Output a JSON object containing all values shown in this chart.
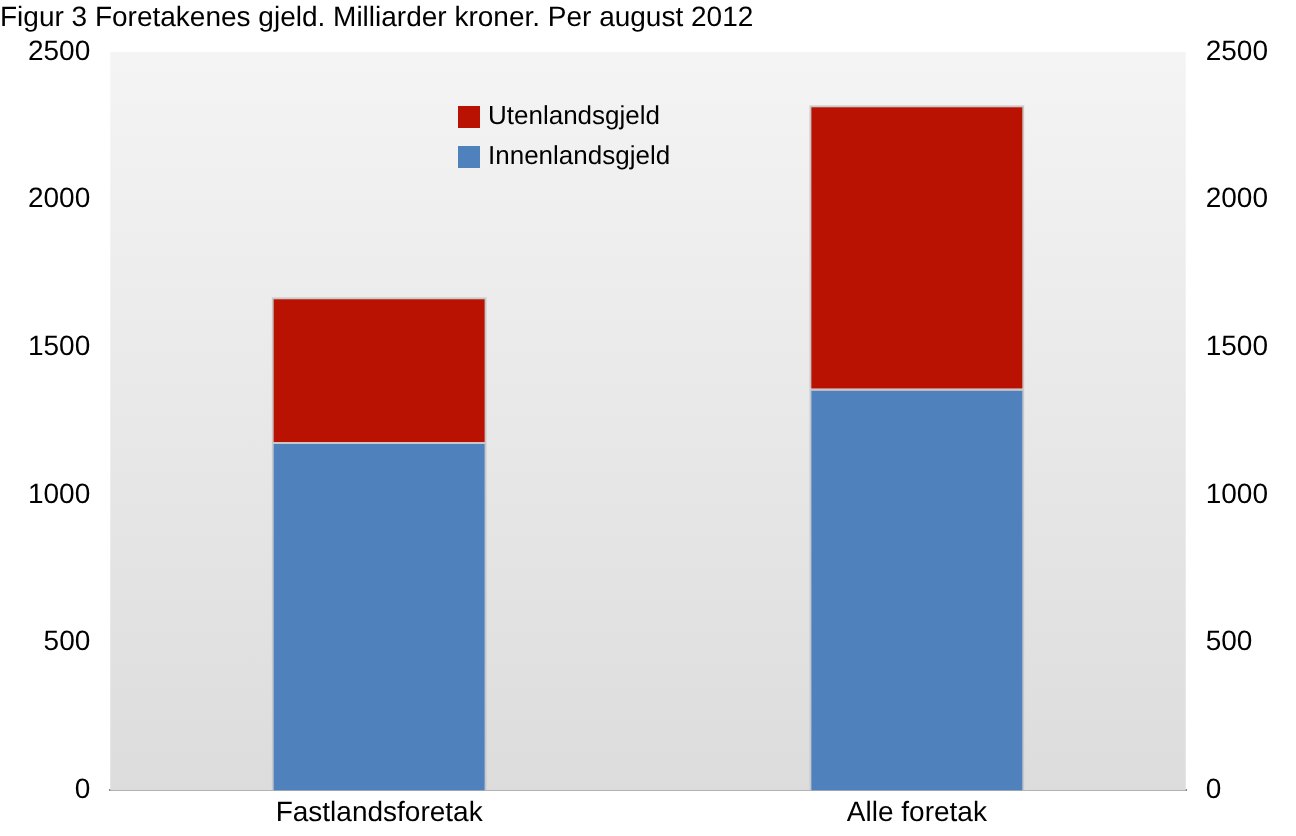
{
  "chart_data": {
    "type": "bar",
    "stacked": true,
    "title": "Figur 3 Foretakenes gjeld. Milliarder kroner. Per august 2012",
    "categories": [
      "Fastlandsforetak",
      "Alle foretak"
    ],
    "series": [
      {
        "name": "Innenlandsgjeld",
        "color": "#4f81bd",
        "values": [
          1180,
          1360
        ]
      },
      {
        "name": "Utenlandsgjeld",
        "color": "#b91202",
        "values": [
          490,
          960
        ]
      }
    ],
    "ylim": [
      0,
      2500
    ],
    "yticks": [
      0,
      500,
      1000,
      1500,
      2000,
      2500
    ],
    "y2lim": [
      0,
      2500
    ],
    "y2ticks": [
      0,
      500,
      1000,
      1500,
      2000,
      2500
    ],
    "grid": false,
    "legend": "top"
  }
}
